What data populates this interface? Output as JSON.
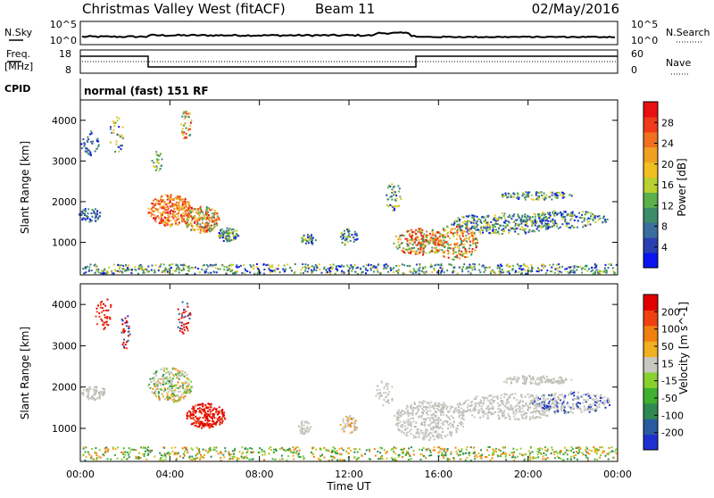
{
  "header": {
    "station": "Christmas Valley West (fitACF)",
    "beam": "Beam 11",
    "date": "02/May/2016"
  },
  "status_strips": {
    "nsky_label": "N.Sky",
    "nsky_ticks": [
      "10^5",
      "10^0"
    ],
    "nsearch_label": "N.Search",
    "nsearch_ticks": [
      "10^5",
      "10^0"
    ],
    "freq_label_1": "Freq.",
    "freq_label_2": "[MHz]",
    "freq_ticks": [
      "18",
      "8"
    ],
    "nave_label": "Nave",
    "nave_ticks": [
      "60",
      "0"
    ],
    "cpid_label": "CPID",
    "cpid_text": "normal (fast) 151 RF"
  },
  "chart_data": [
    {
      "type": "heatmap",
      "ylabel": "Slant Range [km]",
      "xlabel": "Time UT",
      "x_ticks": [
        "00:00",
        "04:00",
        "08:00",
        "12:00",
        "16:00",
        "20:00",
        "00:00"
      ],
      "y_ticks": [
        "1000",
        "2000",
        "3000",
        "4000"
      ],
      "ylim": [
        200,
        4500
      ],
      "colorbar": {
        "label": "Power [dB]",
        "ticks": [
          "4",
          "8",
          "12",
          "16",
          "20",
          "24",
          "28"
        ],
        "colors": [
          "#0a14f0",
          "#2a3fb0",
          "#3a6e9c",
          "#3c8c6a",
          "#5ab04a",
          "#b8d030",
          "#f0c020",
          "#f0a020",
          "#f07020",
          "#f03a1c",
          "#e81010"
        ]
      }
    },
    {
      "type": "heatmap",
      "ylabel": "Slant Range [km]",
      "xlabel": "Time UT",
      "x_ticks": [
        "00:00",
        "04:00",
        "08:00",
        "12:00",
        "16:00",
        "20:00",
        "00:00"
      ],
      "y_ticks": [
        "1000",
        "2000",
        "3000",
        "4000"
      ],
      "ylim": [
        200,
        4500
      ],
      "colorbar": {
        "label": "Velocity [m s^-1]",
        "ticks": [
          "200",
          "100",
          "50",
          "15",
          "-15",
          "-50",
          "-100",
          "-200"
        ],
        "colors": [
          "#2030d0",
          "#2a5aa0",
          "#2e8a50",
          "#40b030",
          "#88d030",
          "#c8c8c0",
          "#f0b020",
          "#f08010",
          "#f04010",
          "#e00000"
        ]
      }
    }
  ],
  "x_axis_title": "Time UT"
}
